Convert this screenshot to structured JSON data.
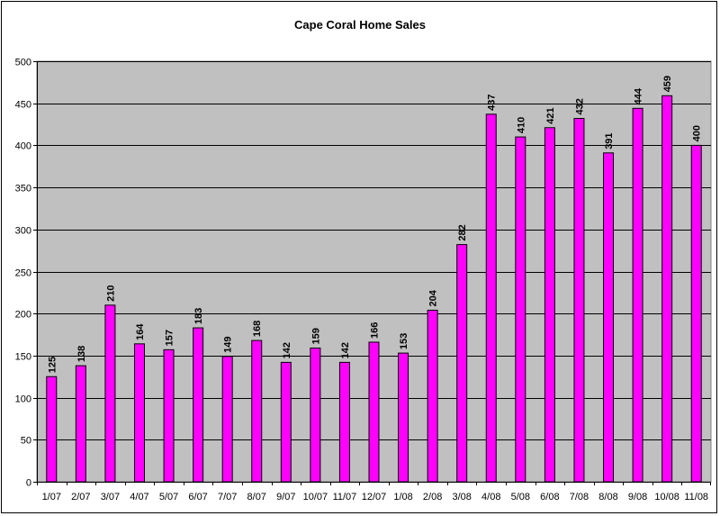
{
  "chart_data": {
    "type": "bar",
    "title": "Cape Coral Home Sales",
    "xlabel": "",
    "ylabel": "",
    "categories": [
      "1/07",
      "2/07",
      "3/07",
      "4/07",
      "5/07",
      "6/07",
      "7/07",
      "8/07",
      "9/07",
      "10/07",
      "11/07",
      "12/07",
      "1/08",
      "2/08",
      "3/08",
      "4/08",
      "5/08",
      "6/08",
      "7/08",
      "8/08",
      "9/08",
      "10/08",
      "11/08"
    ],
    "values": [
      125,
      138,
      210,
      164,
      157,
      183,
      149,
      168,
      142,
      159,
      142,
      166,
      153,
      204,
      282,
      437,
      410,
      421,
      432,
      391,
      444,
      459,
      400
    ],
    "ylim": [
      0,
      500
    ],
    "yticks": [
      0,
      50,
      100,
      150,
      200,
      250,
      300,
      350,
      400,
      450,
      500
    ],
    "grid": true,
    "legend": "none",
    "colors": {
      "bar_fill": "#ff00ff",
      "bar_stroke": "#000000",
      "plot_background": "#c0c0c0",
      "gridline": "#000000"
    }
  }
}
